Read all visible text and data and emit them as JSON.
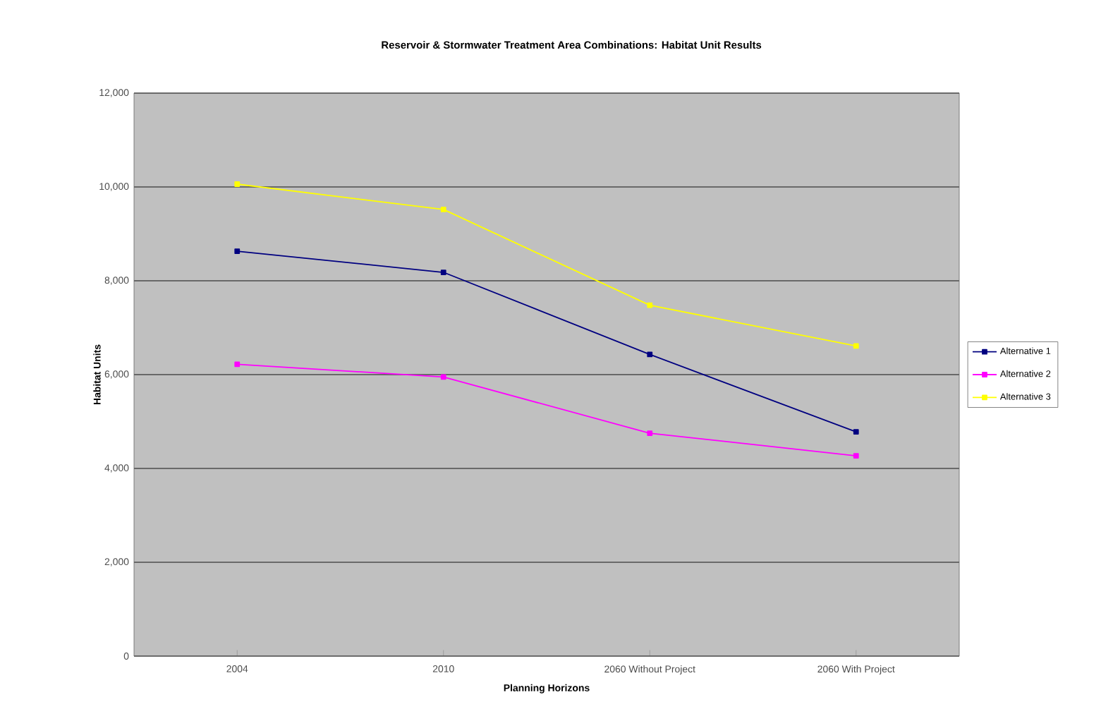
{
  "chart_data": {
    "type": "line",
    "title": "Reservoir & Stormwater Treatment Area Combinations: Habitat Unit Results",
    "xlabel": "Planning Horizons",
    "ylabel": "Habitat Units",
    "categories": [
      "2004",
      "2010",
      "2060 Without Project",
      "2060 With Project"
    ],
    "series": [
      {
        "name": "Alternative 1",
        "color": "#000080",
        "values": [
          8630,
          8180,
          6430,
          4780
        ]
      },
      {
        "name": "Alternative 2",
        "color": "#ff00ff",
        "values": [
          6220,
          5950,
          4750,
          4270
        ]
      },
      {
        "name": "Alternative 3",
        "color": "#ffff00",
        "values": [
          10060,
          9520,
          7480,
          6610
        ]
      }
    ],
    "ylim": [
      0,
      12000
    ],
    "yticks": [
      0,
      {
        "value": 2000,
        "label": "2,000"
      },
      {
        "value": 4000,
        "label": "4,000"
      },
      {
        "value": 6000,
        "label": "6,000"
      },
      {
        "value": 8000,
        "label": "8,000"
      },
      {
        "value": 10000,
        "label": "10,000"
      },
      {
        "value": 12000,
        "label": "12,000"
      }
    ],
    "grid": "y",
    "legend": "right",
    "marker": "square",
    "line_style": "solid"
  }
}
